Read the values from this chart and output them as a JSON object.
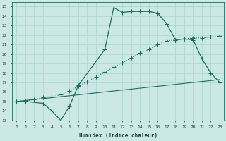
{
  "xlabel": "Humidex (Indice chaleur)",
  "bg_color": "#cce8e4",
  "grid_color": "#b0d8d2",
  "line_color": "#1a6e64",
  "xlim": [
    -0.5,
    23.5
  ],
  "ylim": [
    13,
    25.5
  ],
  "xticks": [
    0,
    1,
    2,
    3,
    4,
    5,
    6,
    7,
    8,
    9,
    10,
    11,
    12,
    13,
    14,
    15,
    16,
    17,
    18,
    19,
    20,
    21,
    22,
    23
  ],
  "yticks": [
    13,
    14,
    15,
    16,
    17,
    18,
    19,
    20,
    21,
    22,
    23,
    24,
    25
  ],
  "line1_x": [
    0,
    1,
    3,
    4,
    5,
    6,
    7,
    10,
    11,
    12,
    13,
    14,
    15,
    16,
    17,
    18,
    19,
    20,
    21,
    22,
    23
  ],
  "line1_y": [
    15,
    15,
    14.8,
    14,
    13,
    14.5,
    16.7,
    20.5,
    24.9,
    24.4,
    24.5,
    24.5,
    24.5,
    24.3,
    23.2,
    21.5,
    21.6,
    21.5,
    19.5,
    18.0,
    17.0
  ],
  "line2_x": [
    0,
    1,
    2,
    3,
    4,
    5,
    6,
    7,
    8,
    9,
    10,
    11,
    12,
    13,
    14,
    15,
    16,
    17,
    18,
    19,
    20,
    21,
    22,
    23
  ],
  "line2_y": [
    15.0,
    15.1,
    15.2,
    15.4,
    15.5,
    15.7,
    16.1,
    16.6,
    17.1,
    17.6,
    18.1,
    18.6,
    19.1,
    19.6,
    20.1,
    20.5,
    21.0,
    21.4,
    21.5,
    21.6,
    21.7,
    21.7,
    21.8,
    21.9
  ],
  "line3_x": [
    0,
    23
  ],
  "line3_y": [
    15.0,
    17.3
  ]
}
